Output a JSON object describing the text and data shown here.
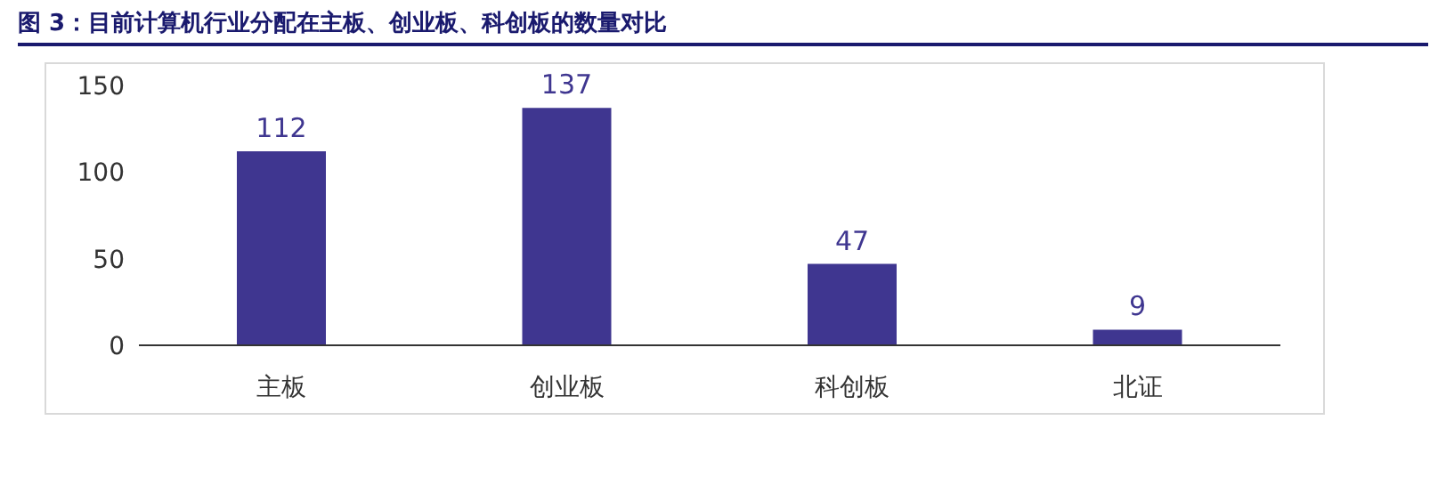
{
  "chart_data": {
    "type": "bar",
    "title": "图 3：目前计算机行业分配在主板、创业板、科创板的数量对比",
    "categories": [
      "主板",
      "创业板",
      "科创板",
      "北证"
    ],
    "values": [
      112,
      137,
      47,
      9
    ],
    "color": "#3f3690",
    "ylim": [
      0,
      150
    ],
    "yticks": [
      0,
      50,
      100,
      150
    ],
    "grid": false,
    "data_labels": true
  }
}
